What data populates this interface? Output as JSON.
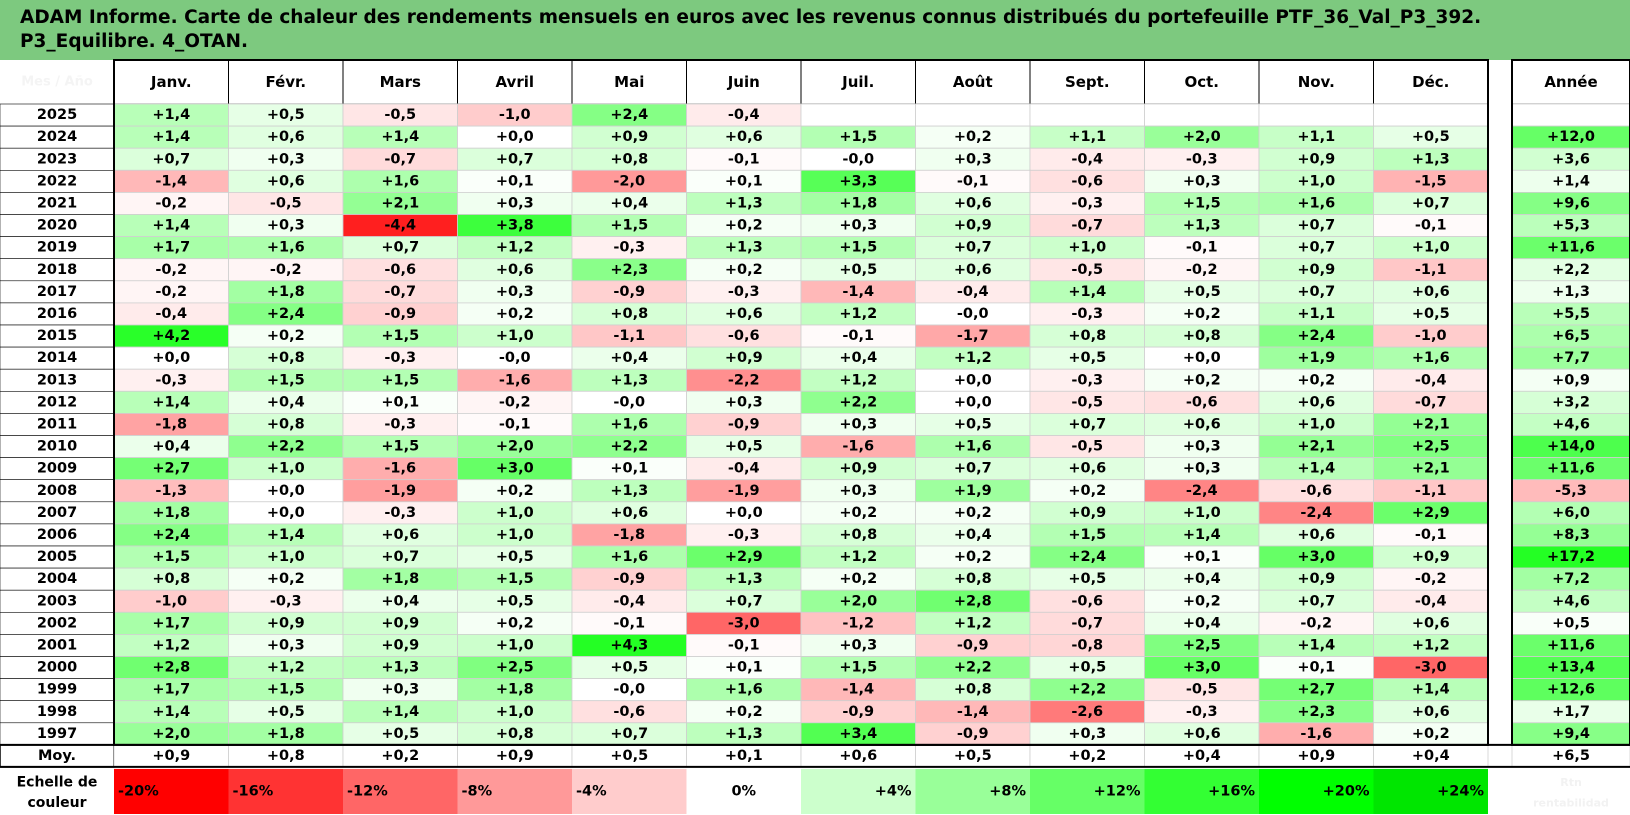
{
  "title_lines": [
    "ADAM Informe. Carte de chaleur des rendements mensuels en euros avec les revenus connus distribués du portefeuille PTF_36_Val_P3_392.",
    "P3_Equilibre. 4_OTAN."
  ],
  "chart_data": {
    "type": "heatmap",
    "title": "ADAM Informe. Carte de chaleur des rendements mensuels en euros avec les revenus connus distribués du portefeuille PTF_36_Val_P3_392. P3_Equilibre. 4_OTAN.",
    "corner_label": "Mes / Año",
    "months": [
      "Janv.",
      "Févr.",
      "Mars",
      "Avril",
      "Mai",
      "Juin",
      "Juil.",
      "Août",
      "Sept.",
      "Oct.",
      "Nov.",
      "Déc."
    ],
    "annual_header": "Année",
    "rows": [
      {
        "year": "2025",
        "values": [
          "+1,4",
          "+0,5",
          "-0,5",
          "-1,0",
          "+2,4",
          "-0,4",
          "",
          "",
          "",
          "",
          "",
          ""
        ],
        "annual": ""
      },
      {
        "year": "2024",
        "values": [
          "+1,4",
          "+0,6",
          "+1,4",
          "+0,0",
          "+0,9",
          "+0,6",
          "+1,5",
          "+0,2",
          "+1,1",
          "+2,0",
          "+1,1",
          "+0,5"
        ],
        "annual": "+12,0"
      },
      {
        "year": "2023",
        "values": [
          "+0,7",
          "+0,3",
          "-0,7",
          "+0,7",
          "+0,8",
          "-0,1",
          "-0,0",
          "+0,3",
          "-0,4",
          "-0,3",
          "+0,9",
          "+1,3"
        ],
        "annual": "+3,6"
      },
      {
        "year": "2022",
        "values": [
          "-1,4",
          "+0,6",
          "+1,6",
          "+0,1",
          "-2,0",
          "+0,1",
          "+3,3",
          "-0,1",
          "-0,6",
          "+0,3",
          "+1,0",
          "-1,5"
        ],
        "annual": "+1,4"
      },
      {
        "year": "2021",
        "values": [
          "-0,2",
          "-0,5",
          "+2,1",
          "+0,3",
          "+0,4",
          "+1,3",
          "+1,8",
          "+0,6",
          "-0,3",
          "+1,5",
          "+1,6",
          "+0,7"
        ],
        "annual": "+9,6"
      },
      {
        "year": "2020",
        "values": [
          "+1,4",
          "+0,3",
          "-4,4",
          "+3,8",
          "+1,5",
          "+0,2",
          "+0,3",
          "+0,9",
          "-0,7",
          "+1,3",
          "+0,7",
          "-0,1"
        ],
        "annual": "+5,3"
      },
      {
        "year": "2019",
        "values": [
          "+1,7",
          "+1,6",
          "+0,7",
          "+1,2",
          "-0,3",
          "+1,3",
          "+1,5",
          "+0,7",
          "+1,0",
          "-0,1",
          "+0,7",
          "+1,0"
        ],
        "annual": "+11,6"
      },
      {
        "year": "2018",
        "values": [
          "-0,2",
          "-0,2",
          "-0,6",
          "+0,6",
          "+2,3",
          "+0,2",
          "+0,5",
          "+0,6",
          "-0,5",
          "-0,2",
          "+0,9",
          "-1,1"
        ],
        "annual": "+2,2"
      },
      {
        "year": "2017",
        "values": [
          "-0,2",
          "+1,8",
          "-0,7",
          "+0,3",
          "-0,9",
          "-0,3",
          "-1,4",
          "-0,4",
          "+1,4",
          "+0,5",
          "+0,7",
          "+0,6"
        ],
        "annual": "+1,3"
      },
      {
        "year": "2016",
        "values": [
          "-0,4",
          "+2,4",
          "-0,9",
          "+0,2",
          "+0,8",
          "+0,6",
          "+1,2",
          "-0,0",
          "-0,3",
          "+0,2",
          "+1,1",
          "+0,5"
        ],
        "annual": "+5,5"
      },
      {
        "year": "2015",
        "values": [
          "+4,2",
          "+0,2",
          "+1,5",
          "+1,0",
          "-1,1",
          "-0,6",
          "-0,1",
          "-1,7",
          "+0,8",
          "+0,8",
          "+2,4",
          "-1,0"
        ],
        "annual": "+6,5"
      },
      {
        "year": "2014",
        "values": [
          "+0,0",
          "+0,8",
          "-0,3",
          "-0,0",
          "+0,4",
          "+0,9",
          "+0,4",
          "+1,2",
          "+0,5",
          "+0,0",
          "+1,9",
          "+1,6"
        ],
        "annual": "+7,7"
      },
      {
        "year": "2013",
        "values": [
          "-0,3",
          "+1,5",
          "+1,5",
          "-1,6",
          "+1,3",
          "-2,2",
          "+1,2",
          "+0,0",
          "-0,3",
          "+0,2",
          "+0,2",
          "-0,4"
        ],
        "annual": "+0,9"
      },
      {
        "year": "2012",
        "values": [
          "+1,4",
          "+0,4",
          "+0,1",
          "-0,2",
          "-0,0",
          "+0,3",
          "+2,2",
          "+0,0",
          "-0,5",
          "-0,6",
          "+0,6",
          "-0,7"
        ],
        "annual": "+3,2"
      },
      {
        "year": "2011",
        "values": [
          "-1,8",
          "+0,8",
          "-0,3",
          "-0,1",
          "+1,6",
          "-0,9",
          "+0,3",
          "+0,5",
          "+0,7",
          "+0,6",
          "+1,0",
          "+2,1"
        ],
        "annual": "+4,6"
      },
      {
        "year": "2010",
        "values": [
          "+0,4",
          "+2,2",
          "+1,5",
          "+2,0",
          "+2,2",
          "+0,5",
          "-1,6",
          "+1,6",
          "-0,5",
          "+0,3",
          "+2,1",
          "+2,5"
        ],
        "annual": "+14,0"
      },
      {
        "year": "2009",
        "values": [
          "+2,7",
          "+1,0",
          "-1,6",
          "+3,0",
          "+0,1",
          "-0,4",
          "+0,9",
          "+0,7",
          "+0,6",
          "+0,3",
          "+1,4",
          "+2,1"
        ],
        "annual": "+11,6"
      },
      {
        "year": "2008",
        "values": [
          "-1,3",
          "+0,0",
          "-1,9",
          "+0,2",
          "+1,3",
          "-1,9",
          "+0,3",
          "+1,9",
          "+0,2",
          "-2,4",
          "-0,6",
          "-1,1"
        ],
        "annual": "-5,3"
      },
      {
        "year": "2007",
        "values": [
          "+1,8",
          "+0,0",
          "-0,3",
          "+1,0",
          "+0,6",
          "+0,0",
          "+0,2",
          "+0,2",
          "+0,9",
          "+1,0",
          "-2,4",
          "+2,9"
        ],
        "annual": "+6,0"
      },
      {
        "year": "2006",
        "values": [
          "+2,4",
          "+1,4",
          "+0,6",
          "+1,0",
          "-1,8",
          "-0,3",
          "+0,8",
          "+0,4",
          "+1,5",
          "+1,4",
          "+0,6",
          "-0,1"
        ],
        "annual": "+8,3"
      },
      {
        "year": "2005",
        "values": [
          "+1,5",
          "+1,0",
          "+0,7",
          "+0,5",
          "+1,6",
          "+2,9",
          "+1,2",
          "+0,2",
          "+2,4",
          "+0,1",
          "+3,0",
          "+0,9"
        ],
        "annual": "+17,2"
      },
      {
        "year": "2004",
        "values": [
          "+0,8",
          "+0,2",
          "+1,8",
          "+1,5",
          "-0,9",
          "+1,3",
          "+0,2",
          "+0,8",
          "+0,5",
          "+0,4",
          "+0,9",
          "-0,2"
        ],
        "annual": "+7,2"
      },
      {
        "year": "2003",
        "values": [
          "-1,0",
          "-0,3",
          "+0,4",
          "+0,5",
          "-0,4",
          "+0,7",
          "+2,0",
          "+2,8",
          "-0,6",
          "+0,2",
          "+0,7",
          "-0,4"
        ],
        "annual": "+4,6"
      },
      {
        "year": "2002",
        "values": [
          "+1,7",
          "+0,9",
          "+0,9",
          "+0,2",
          "-0,1",
          "-3,0",
          "-1,2",
          "+1,2",
          "-0,7",
          "+0,4",
          "-0,2",
          "+0,6"
        ],
        "annual": "+0,5"
      },
      {
        "year": "2001",
        "values": [
          "+1,2",
          "+0,3",
          "+0,9",
          "+1,0",
          "+4,3",
          "-0,1",
          "+0,3",
          "-0,9",
          "-0,8",
          "+2,5",
          "+1,4",
          "+1,2"
        ],
        "annual": "+11,6"
      },
      {
        "year": "2000",
        "values": [
          "+2,8",
          "+1,2",
          "+1,3",
          "+2,5",
          "+0,5",
          "+0,1",
          "+1,5",
          "+2,2",
          "+0,5",
          "+3,0",
          "+0,1",
          "-3,0"
        ],
        "annual": "+13,4"
      },
      {
        "year": "1999",
        "values": [
          "+1,7",
          "+1,5",
          "+0,3",
          "+1,8",
          "-0,0",
          "+1,6",
          "-1,4",
          "+0,8",
          "+2,2",
          "-0,5",
          "+2,7",
          "+1,4"
        ],
        "annual": "+12,6"
      },
      {
        "year": "1998",
        "values": [
          "+1,4",
          "+0,5",
          "+1,4",
          "+1,0",
          "-0,6",
          "+0,2",
          "-0,9",
          "-1,4",
          "-2,6",
          "-0,3",
          "+2,3",
          "+0,6"
        ],
        "annual": "+1,7"
      },
      {
        "year": "1997",
        "values": [
          "+2,0",
          "+1,8",
          "+0,5",
          "+0,8",
          "+0,7",
          "+1,3",
          "+3,4",
          "-0,9",
          "+0,3",
          "+0,6",
          "-1,6",
          "+0,2"
        ],
        "annual": "+9,4"
      }
    ],
    "average_row": {
      "label": "Moy.",
      "values": [
        "+0,9",
        "+0,8",
        "+0,2",
        "+0,9",
        "+0,5",
        "+0,1",
        "+0,6",
        "+0,5",
        "+0,2",
        "+0,4",
        "+0,9",
        "+0,4"
      ],
      "annual": "+6,5"
    },
    "scale": {
      "label_lines": [
        "Echelle de",
        "couleur"
      ],
      "stops": [
        "-20%",
        "-16%",
        "-12%",
        "-8%",
        "-4%",
        "0%",
        "+4%",
        "+8%",
        "+12%",
        "+16%",
        "+20%",
        "+24%"
      ],
      "colors": [
        "#ff0000",
        "#ff3333",
        "#ff6666",
        "#ff9999",
        "#ffcccc",
        "#ffffff",
        "#ccffcc",
        "#99ff99",
        "#66ff66",
        "#33ff33",
        "#00ff00",
        "#00e600"
      ],
      "extra_label_lines": [
        "Rtn",
        "rentabilidad"
      ]
    },
    "color_rule": {
      "monthly_full_scale_pct": 5,
      "annual_full_scale_pct": 20,
      "negative_color": "#ff0000",
      "positive_color": "#00ff00"
    }
  }
}
